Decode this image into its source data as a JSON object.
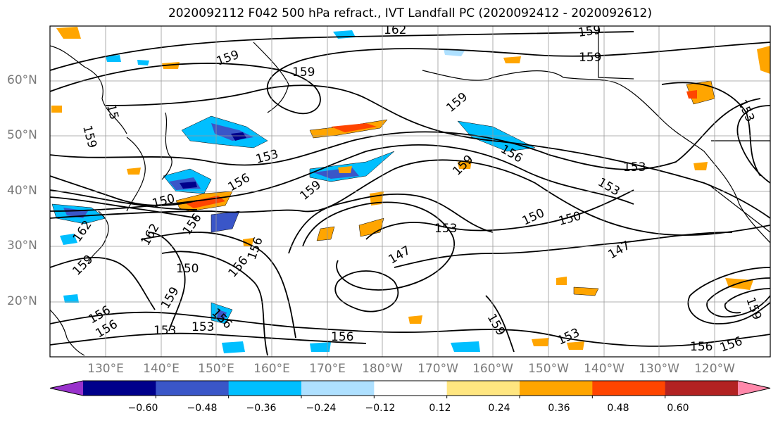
{
  "title": "2020092112 F042 500 hPa refract., IVT Landfall PC (2020092412 - 2020092612)",
  "map": {
    "projection": "cylindrical",
    "lon_range": [
      119,
      248
    ],
    "lat_range": [
      10,
      70
    ],
    "lat_labels": [
      "60°N",
      "50°N",
      "40°N",
      "30°N",
      "20°N"
    ],
    "lon_labels": [
      "130°E",
      "140°E",
      "150°E",
      "160°E",
      "170°E",
      "180°W",
      "170°W",
      "160°W",
      "150°W",
      "140°W",
      "130°W",
      "120°W"
    ],
    "grid": true,
    "contour_labels": [
      {
        "text": "162"
      },
      {
        "text": "159"
      },
      {
        "text": "159"
      },
      {
        "text": "159"
      },
      {
        "text": "159"
      },
      {
        "text": "15"
      },
      {
        "text": "159"
      },
      {
        "text": "159"
      },
      {
        "text": "156"
      },
      {
        "text": "153"
      },
      {
        "text": "153"
      },
      {
        "text": "153"
      },
      {
        "text": "156"
      },
      {
        "text": "159"
      },
      {
        "text": "159"
      },
      {
        "text": "150"
      },
      {
        "text": "156"
      },
      {
        "text": "162"
      },
      {
        "text": "162"
      },
      {
        "text": "153"
      },
      {
        "text": "150"
      },
      {
        "text": "150"
      },
      {
        "text": "150"
      },
      {
        "text": "147"
      },
      {
        "text": "147"
      },
      {
        "text": "159"
      },
      {
        "text": "156"
      },
      {
        "text": "156"
      },
      {
        "text": "159"
      },
      {
        "text": "156"
      },
      {
        "text": "153"
      },
      {
        "text": "153"
      },
      {
        "text": "156"
      },
      {
        "text": "156"
      },
      {
        "text": "153"
      },
      {
        "text": "156"
      },
      {
        "text": "156"
      },
      {
        "text": "156"
      },
      {
        "text": "159"
      },
      {
        "text": "153"
      },
      {
        "text": "159"
      }
    ]
  },
  "colorbar": {
    "ticks": [
      "−0.60",
      "−0.48",
      "−0.36",
      "−0.24",
      "−0.12",
      "0.12",
      "0.24",
      "0.36",
      "0.48",
      "0.60"
    ],
    "colors": [
      "#9932cc",
      "#00008b",
      "#3a56c8",
      "#00bfff",
      "#aee0ff",
      "#ffffff",
      "#ffe680",
      "#ffa500",
      "#ff4500",
      "#b22222",
      "#ff88aa"
    ]
  }
}
